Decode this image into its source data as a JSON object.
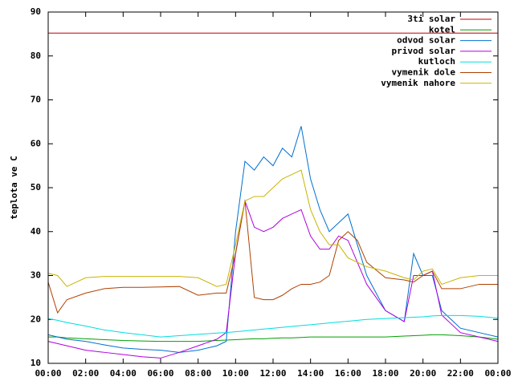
{
  "chart_data": {
    "type": "line",
    "y_label": "teplota ve C",
    "xlim": [
      0,
      24
    ],
    "xticks": [
      {
        "value": 0,
        "label": "00:00"
      },
      {
        "value": 2,
        "label": "02:00"
      },
      {
        "value": 4,
        "label": "04:00"
      },
      {
        "value": 6,
        "label": "06:00"
      },
      {
        "value": 8,
        "label": "08:00"
      },
      {
        "value": 10,
        "label": "10:00"
      },
      {
        "value": 12,
        "label": "12:00"
      },
      {
        "value": 14,
        "label": "14:00"
      },
      {
        "value": 16,
        "label": "16:00"
      },
      {
        "value": 18,
        "label": "18:00"
      },
      {
        "value": 20,
        "label": "20:00"
      },
      {
        "value": 22,
        "label": "22:00"
      },
      {
        "value": 24,
        "label": "00:00"
      }
    ],
    "ylim": [
      10,
      90
    ],
    "yticks": [
      10,
      20,
      30,
      40,
      50,
      60,
      70,
      80,
      90
    ],
    "legend": "top-right",
    "x": [
      0,
      0.5,
      1,
      2,
      3,
      4,
      5,
      6,
      7,
      8,
      9,
      9.5,
      10,
      10.5,
      11,
      11.5,
      12,
      12.5,
      13,
      13.5,
      14,
      14.5,
      15,
      15.5,
      16,
      16.5,
      17,
      18,
      19,
      19.5,
      20,
      20.5,
      21,
      22,
      23,
      24
    ],
    "series": [
      {
        "name": "3ti solar",
        "color": "#c00000",
        "values": [
          85.2,
          85.2,
          85.2,
          85.2,
          85.2,
          85.2,
          85.2,
          85.2,
          85.2,
          85.2,
          85.2,
          85.2,
          85.2,
          85.2,
          85.2,
          85.2,
          85.2,
          85.2,
          85.2,
          85.2,
          85.2,
          85.2,
          85.2,
          85.2,
          85.2,
          85.2,
          85.2,
          85.2,
          85.2,
          85.2,
          85.2,
          85.2,
          85.2,
          85.2,
          85.2,
          85.2
        ]
      },
      {
        "name": "kotel",
        "color": "#00a000",
        "values": [
          16,
          16,
          15.8,
          15.6,
          15.4,
          15.2,
          15.1,
          15,
          15,
          15,
          15.2,
          15.3,
          15.4,
          15.5,
          15.6,
          15.6,
          15.7,
          15.8,
          15.8,
          15.9,
          16,
          16,
          16,
          16,
          16,
          16,
          16,
          16,
          16.2,
          16.3,
          16.4,
          16.5,
          16.5,
          16.3,
          16,
          15.5
        ]
      },
      {
        "name": "odvod solar",
        "color": "#0070d0",
        "values": [
          16.5,
          16,
          15.5,
          15,
          14.2,
          13.5,
          13.2,
          13,
          12.5,
          13,
          14,
          15,
          40,
          56,
          54,
          57,
          55,
          59,
          57,
          64,
          52,
          45,
          40,
          42,
          44,
          37,
          30,
          22,
          19.5,
          35,
          30,
          30,
          22,
          18,
          17,
          16
        ]
      },
      {
        "name": "privod solar",
        "color": "#b000e0",
        "values": [
          15,
          14.5,
          14,
          13,
          12.5,
          12,
          11.5,
          11.2,
          12.5,
          14,
          15.5,
          17,
          35,
          47,
          41,
          40,
          41,
          43,
          44,
          45,
          39,
          36,
          36,
          39,
          38,
          33,
          28,
          22,
          19.5,
          30,
          30,
          31,
          21,
          17,
          16,
          15
        ]
      },
      {
        "name": "kutloch",
        "color": "#00dddd",
        "values": [
          20.2,
          19.8,
          19.3,
          18.5,
          17.6,
          17,
          16.5,
          16,
          16.3,
          16.6,
          16.9,
          17,
          17.2,
          17.4,
          17.6,
          17.8,
          18,
          18.2,
          18.4,
          18.6,
          18.8,
          19,
          19.2,
          19.4,
          19.6,
          19.8,
          20,
          20.2,
          20.4,
          20.5,
          20.6,
          20.8,
          20.9,
          20.9,
          20.7,
          20.3
        ]
      },
      {
        "name": "vymenik dole",
        "color": "#b04000",
        "values": [
          28.5,
          21.5,
          24.5,
          26,
          27,
          27.3,
          27.3,
          27.4,
          27.5,
          25.5,
          26,
          26,
          35,
          47,
          25,
          24.5,
          24.5,
          25.5,
          27,
          28,
          28,
          28.5,
          30,
          38,
          40,
          38,
          33,
          29.5,
          29,
          28.5,
          30,
          31,
          27,
          27,
          28,
          28
        ]
      },
      {
        "name": "vymenik nahore",
        "color": "#c8b400",
        "values": [
          30.5,
          30,
          27.5,
          29.5,
          29.8,
          29.8,
          29.8,
          29.8,
          29.8,
          29.5,
          27.5,
          28,
          37,
          47,
          48,
          48,
          50,
          52,
          53,
          54,
          45,
          40,
          37,
          37,
          34,
          33,
          32,
          31,
          29.5,
          29,
          31,
          31.5,
          28,
          29.5,
          30,
          30
        ]
      }
    ]
  }
}
